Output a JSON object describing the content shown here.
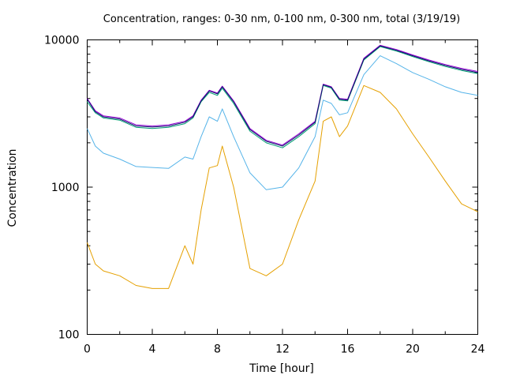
{
  "chart_data": {
    "type": "line",
    "title": "Concentration, ranges: 0-30 nm, 0-100 nm, 0-300 nm, total (3/19/19)",
    "xlabel": "Time [hour]",
    "ylabel": "Concentration",
    "xlim": [
      0,
      24
    ],
    "ylim": [
      100,
      10000
    ],
    "yscale": "log",
    "grid": false,
    "legend": "none",
    "x_ticks": [
      0,
      4,
      8,
      12,
      16,
      20,
      24
    ],
    "x_tick_labels": [
      "0",
      "4",
      "8",
      "12",
      "16",
      "20",
      "24"
    ],
    "y_ticks": [
      100,
      1000,
      10000
    ],
    "y_tick_labels": [
      "100",
      "1000",
      "10000"
    ],
    "x": [
      0,
      0.5,
      1,
      2,
      3,
      4,
      5,
      6,
      6.5,
      7,
      7.5,
      8,
      8.3,
      9,
      10,
      11,
      12,
      13,
      14,
      14.5,
      15,
      15.5,
      16,
      17,
      18,
      19,
      20,
      21,
      22,
      23,
      24
    ],
    "series": [
      {
        "color": "#e5a000",
        "values": [
          420,
          300,
          270,
          250,
          215,
          205,
          205,
          400,
          300,
          700,
          1350,
          1400,
          1900,
          1000,
          280,
          250,
          300,
          600,
          1100,
          2800,
          3000,
          2200,
          2600,
          4900,
          4400,
          3400,
          2300,
          1600,
          1100,
          770,
          680
        ]
      },
      {
        "color": "#56b4e9",
        "values": [
          2500,
          1900,
          1700,
          1550,
          1380,
          1360,
          1340,
          1600,
          1550,
          2200,
          3000,
          2800,
          3400,
          2200,
          1250,
          960,
          1000,
          1350,
          2200,
          3900,
          3700,
          3100,
          3200,
          5800,
          7800,
          6900,
          6000,
          5400,
          4800,
          4400,
          4200
        ]
      },
      {
        "color": "#009e73",
        "values": [
          3800,
          3200,
          2950,
          2850,
          2550,
          2500,
          2550,
          2700,
          2950,
          3800,
          4400,
          4200,
          4700,
          3700,
          2400,
          2000,
          1850,
          2200,
          2700,
          4900,
          4700,
          3900,
          3850,
          7300,
          9000,
          8400,
          7700,
          7100,
          6600,
          6200,
          5900
        ]
      },
      {
        "color": "#9400d3",
        "values": [
          4000,
          3300,
          3050,
          2950,
          2650,
          2600,
          2650,
          2800,
          3050,
          3900,
          4550,
          4350,
          4850,
          3850,
          2500,
          2080,
          1930,
          2300,
          2800,
          5000,
          4800,
          4000,
          3950,
          7500,
          9200,
          8600,
          7900,
          7300,
          6800,
          6400,
          6100
        ]
      },
      {
        "color": "#10106e",
        "values": [
          3950,
          3250,
          3000,
          2900,
          2600,
          2560,
          2600,
          2760,
          3000,
          3850,
          4500,
          4300,
          4800,
          3800,
          2460,
          2050,
          1900,
          2260,
          2760,
          4960,
          4760,
          3960,
          3900,
          7400,
          9100,
          8500,
          7800,
          7200,
          6700,
          6300,
          6000
        ]
      }
    ]
  }
}
